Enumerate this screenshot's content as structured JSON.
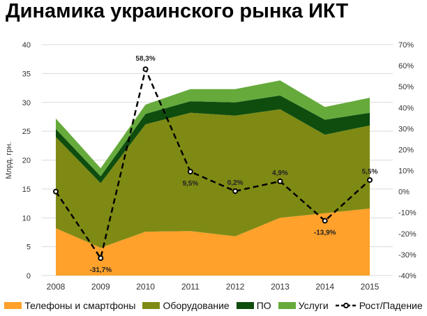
{
  "chart_data": {
    "type": "area",
    "title": "Динамика украинского рынка ИКТ",
    "ylabel": "Млрд. грн.",
    "categories": [
      "2008",
      "2009",
      "2010",
      "2011",
      "2012",
      "2013",
      "2014",
      "2015"
    ],
    "ylim": [
      0,
      40
    ],
    "yticks": [
      "0",
      "5",
      "10",
      "15",
      "20",
      "25",
      "30",
      "35",
      "40"
    ],
    "y2lim": [
      -40,
      70
    ],
    "y2ticks": [
      "-40%",
      "-30%",
      "-20%",
      "-10%",
      "0%",
      "10%",
      "20%",
      "30%",
      "40%",
      "50%",
      "60%",
      "70%"
    ],
    "series": [
      {
        "name": "Телефоны и смартфоны",
        "color": "#FFA12B",
        "values": [
          8.2,
          4.8,
          7.6,
          7.7,
          6.8,
          10.0,
          10.8,
          11.6
        ]
      },
      {
        "name": "Оборудование",
        "color": "#7F8A14",
        "values": [
          15.8,
          11.2,
          18.6,
          20.5,
          20.9,
          18.8,
          13.6,
          14.4
        ]
      },
      {
        "name": "ПО",
        "color": "#0F4D0F",
        "values": [
          1.4,
          1.2,
          1.8,
          2.0,
          2.3,
          2.4,
          2.6,
          2.2
        ]
      },
      {
        "name": "Услуги",
        "color": "#66AA3C",
        "values": [
          1.8,
          1.4,
          1.6,
          2.1,
          2.3,
          2.6,
          2.2,
          2.6
        ]
      }
    ],
    "line": {
      "name": "Рост/Падение",
      "axis": "right",
      "values": [
        0,
        -31.7,
        58.3,
        9.5,
        0.2,
        4.9,
        -13.9,
        5.5
      ],
      "labels": [
        "",
        "-31,7%",
        "58,3%",
        "9,5%",
        "0,2%",
        "4,9%",
        "-13,9%",
        "5,5%"
      ]
    }
  }
}
